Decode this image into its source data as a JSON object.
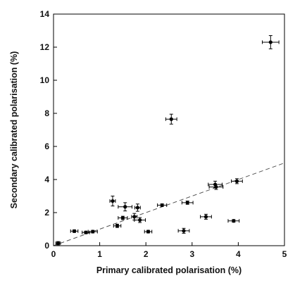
{
  "chart_data": {
    "type": "scatter",
    "title": "",
    "xlabel": "Primary calibrated polarisation (%)",
    "ylabel": "Secondary calibrated polarisation (%)",
    "xlim": [
      0,
      5
    ],
    "ylim": [
      0,
      14
    ],
    "xticks": [
      "0",
      "1",
      "2",
      "3",
      "4",
      "5"
    ],
    "yticks": [
      "0",
      "2",
      "4",
      "6",
      "8",
      "10",
      "12",
      "14"
    ],
    "grid": false,
    "legend": "none",
    "reference_line": {
      "style": "dashed",
      "x": [
        0,
        5
      ],
      "y": [
        0,
        5
      ]
    },
    "points": [
      {
        "x": 0.1,
        "y": 0.15,
        "xerr": 0.05,
        "yerr": 0.1
      },
      {
        "x": 0.45,
        "y": 0.88,
        "xerr": 0.08,
        "yerr": 0.08
      },
      {
        "x": 0.7,
        "y": 0.8,
        "xerr": 0.08,
        "yerr": 0.08
      },
      {
        "x": 0.85,
        "y": 0.85,
        "xerr": 0.1,
        "yerr": 0.08
      },
      {
        "x": 1.28,
        "y": 2.7,
        "xerr": 0.06,
        "yerr": 0.3
      },
      {
        "x": 1.38,
        "y": 1.2,
        "xerr": 0.08,
        "yerr": 0.1
      },
      {
        "x": 1.5,
        "y": 1.68,
        "xerr": 0.1,
        "yerr": 0.1
      },
      {
        "x": 1.55,
        "y": 2.35,
        "xerr": 0.15,
        "yerr": 0.25
      },
      {
        "x": 1.75,
        "y": 1.75,
        "xerr": 0.06,
        "yerr": 0.2
      },
      {
        "x": 1.82,
        "y": 2.3,
        "xerr": 0.06,
        "yerr": 0.22
      },
      {
        "x": 1.87,
        "y": 1.55,
        "xerr": 0.12,
        "yerr": 0.15
      },
      {
        "x": 2.05,
        "y": 0.85,
        "xerr": 0.08,
        "yerr": 0.08
      },
      {
        "x": 2.35,
        "y": 2.45,
        "xerr": 0.1,
        "yerr": 0.08
      },
      {
        "x": 2.55,
        "y": 7.65,
        "xerr": 0.12,
        "yerr": 0.3
      },
      {
        "x": 2.82,
        "y": 0.9,
        "xerr": 0.12,
        "yerr": 0.15
      },
      {
        "x": 2.9,
        "y": 2.6,
        "xerr": 0.12,
        "yerr": 0.1
      },
      {
        "x": 3.3,
        "y": 1.75,
        "xerr": 0.12,
        "yerr": 0.15
      },
      {
        "x": 3.5,
        "y": 3.7,
        "xerr": 0.15,
        "yerr": 0.2
      },
      {
        "x": 3.52,
        "y": 3.55,
        "xerr": 0.15,
        "yerr": 0.15
      },
      {
        "x": 3.9,
        "y": 1.5,
        "xerr": 0.12,
        "yerr": 0.08
      },
      {
        "x": 3.97,
        "y": 3.9,
        "xerr": 0.12,
        "yerr": 0.15
      },
      {
        "x": 4.7,
        "y": 12.3,
        "xerr": 0.18,
        "yerr": 0.4
      }
    ]
  }
}
